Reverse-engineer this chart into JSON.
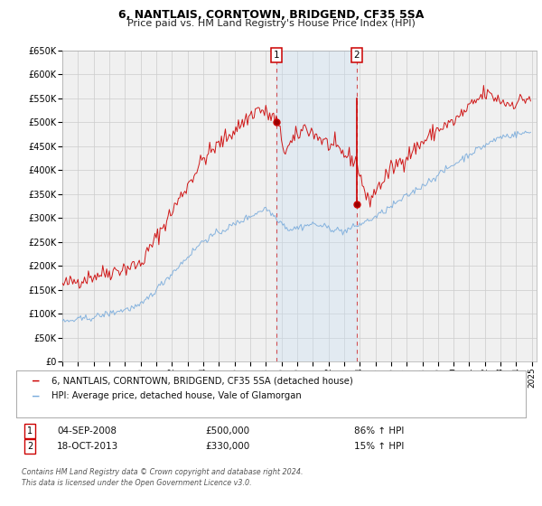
{
  "title": "6, NANTLAIS, CORNTOWN, BRIDGEND, CF35 5SA",
  "subtitle": "Price paid vs. HM Land Registry's House Price Index (HPI)",
  "ylim": [
    0,
    650000
  ],
  "yticks": [
    0,
    50000,
    100000,
    150000,
    200000,
    250000,
    300000,
    350000,
    400000,
    450000,
    500000,
    550000,
    600000,
    650000
  ],
  "ytick_labels": [
    "£0",
    "£50K",
    "£100K",
    "£150K",
    "£200K",
    "£250K",
    "£300K",
    "£350K",
    "£400K",
    "£450K",
    "£500K",
    "£550K",
    "£600K",
    "£650K"
  ],
  "xlim_start": 1995.0,
  "xlim_end": 2025.3,
  "red_line_color": "#cc0000",
  "blue_line_color": "#7aacdc",
  "background_color": "#ffffff",
  "grid_color": "#cccccc",
  "plot_bg_color": "#f0f0f0",
  "shade_color": "#c8dff5",
  "event1_x": 2008.67,
  "event1_y_dot": 500000,
  "event2_x": 2013.8,
  "event2_y_top": 550000,
  "event2_y_dot": 330000,
  "legend_line1": "6, NANTLAIS, CORNTOWN, BRIDGEND, CF35 5SA (detached house)",
  "legend_line2": "HPI: Average price, detached house, Vale of Glamorgan",
  "annot1_label": "1",
  "annot1_date": "04-SEP-2008",
  "annot1_price": "£500,000",
  "annot1_hpi": "86% ↑ HPI",
  "annot2_label": "2",
  "annot2_date": "18-OCT-2013",
  "annot2_price": "£330,000",
  "annot2_hpi": "15% ↑ HPI",
  "footer": "Contains HM Land Registry data © Crown copyright and database right 2024.\nThis data is licensed under the Open Government Licence v3.0.",
  "title_fontsize": 9,
  "subtitle_fontsize": 8
}
